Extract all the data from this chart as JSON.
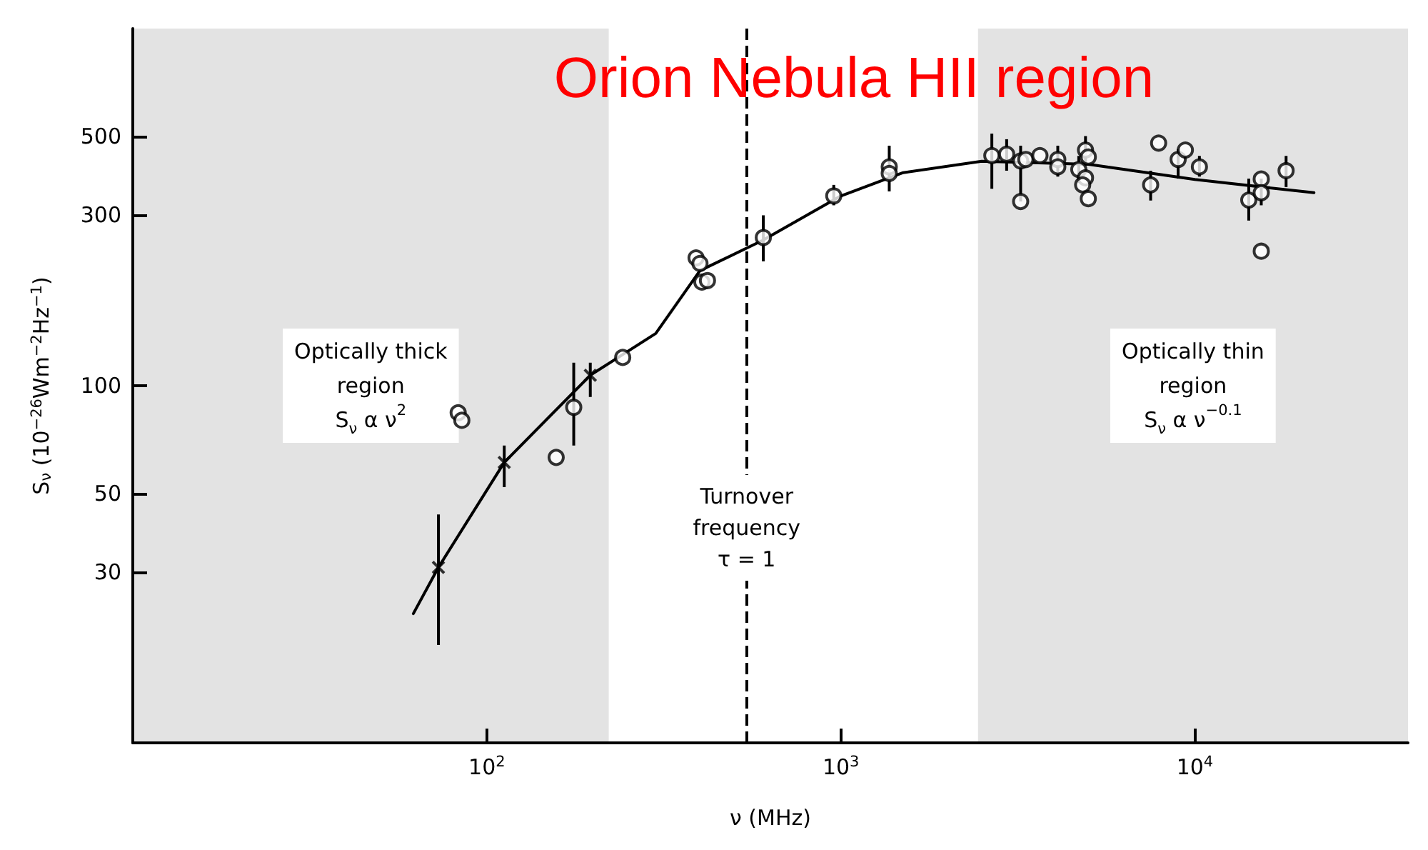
{
  "chart_data": {
    "type": "scatter",
    "title": "Orion Nebula HII region",
    "xlabel": "ν (MHz)",
    "ylabel": "S$_{ν}$ (10$^{−26}$Wm$^{−2}$Hz$^{−1}$)",
    "log": "xy",
    "xlim": [
      10,
      40000
    ],
    "ylim": [
      10,
      1000
    ],
    "xticks": [
      {
        "value": 100,
        "label": "10$^{2}$"
      },
      {
        "value": 1000,
        "label": "10$^{3}$"
      },
      {
        "value": 10000,
        "label": "10$^{4}$"
      }
    ],
    "yticks": [
      30,
      50,
      100,
      300,
      500
    ],
    "grid": false,
    "series": [
      {
        "marker": "cross",
        "color": "#000000",
        "x": [
          73,
          112,
          196
        ],
        "values": [
          31,
          61,
          107
        ],
        "errors": [
          [
            18.8,
            43.6
          ],
          [
            52,
            68
          ],
          [
            93,
            116
          ]
        ]
      },
      {
        "marker": "circle",
        "color": "#000000",
        "x": [
          176,
          157,
          83,
          85,
          242,
          390,
          400,
          405,
          420,
          604,
          955,
          1370,
          1370,
          2670,
          2940,
          3220,
          3220,
          3330,
          3650,
          4100,
          4100,
          4910,
          5000,
          4700,
          4910,
          4820,
          5000,
          7500,
          7900,
          8970,
          9400,
          10300,
          14200,
          15400,
          15400,
          15400,
          18100
        ],
        "values": [
          87,
          63,
          84,
          80,
          120,
          228,
          220,
          195,
          197,
          260,
          340,
          410,
          393,
          441,
          445,
          426,
          328,
          430,
          441,
          430,
          410,
          457,
          437,
          403,
          382,
          365,
          334,
          365,
          478,
          430,
          457,
          410,
          331,
          379,
          347,
          238,
          400
        ],
        "errors": [
          [
            68,
            116
          ],
          null,
          null,
          null,
          null,
          null,
          null,
          null,
          null,
          [
            223,
            300
          ],
          [
            320,
            365
          ],
          [
            350,
            470
          ],
          null,
          [
            356,
            508
          ],
          [
            400,
            490
          ],
          [
            328,
            470
          ],
          null,
          null,
          null,
          [
            385,
            470
          ],
          null,
          [
            420,
            500
          ],
          null,
          [
            370,
            440
          ],
          null,
          null,
          null,
          [
            330,
            400
          ],
          null,
          [
            380,
            460
          ],
          null,
          [
            385,
            440
          ],
          [
            290,
            380
          ],
          null,
          [
            320,
            380
          ],
          null,
          [
            360,
            440
          ]
        ]
      },
      {
        "type": "line",
        "marker": "none",
        "color": "#000000",
        "x": [
          62,
          73,
          112,
          196,
          300,
          400,
          600,
          1000,
          1500,
          2500,
          5000,
          10000,
          21700
        ],
        "values": [
          23,
          31,
          61,
          107,
          140,
          210,
          255,
          340,
          395,
          425,
          417,
          378,
          347
        ]
      }
    ],
    "bands": [
      {
        "axis": "x",
        "from": 10,
        "to": 221,
        "label": "Optically thick\nregion\nS$_{ν}$ α ν$^{2}$",
        "color": "#e3e3e3"
      },
      {
        "axis": "x",
        "from": 2440,
        "to": 40000,
        "label": "Optically thin\nregion\nS$_{ν}$ α ν$^{−0.1}$",
        "color": "#e3e3e3"
      }
    ],
    "ref_lines": [
      {
        "axis": "x",
        "value": 542,
        "line_style": "dashed",
        "color": "#000000"
      }
    ],
    "annotations": [
      {
        "text": "Turnover\nfrequency\nτ = 1",
        "x": 542,
        "y": 40
      }
    ]
  }
}
